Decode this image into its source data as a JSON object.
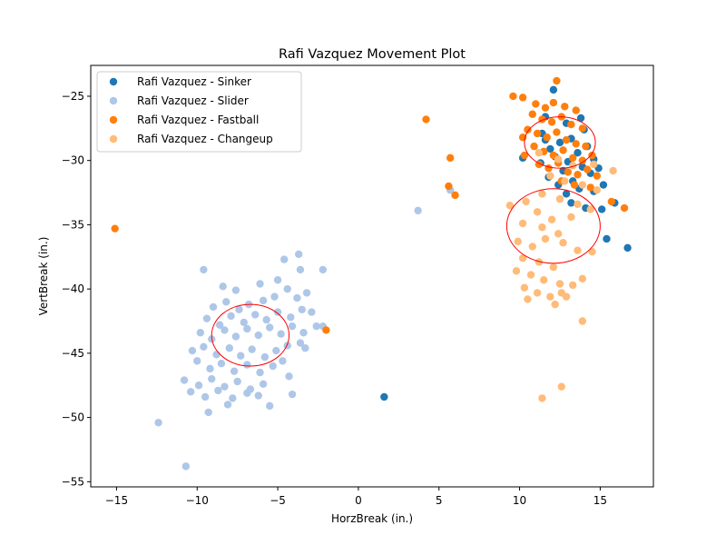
{
  "chart_data": {
    "type": "scatter",
    "title": "Rafi Vazquez Movement Plot",
    "xlabel": "HorzBreak (in.)",
    "ylabel": "VertBreak (in.)",
    "xlim": [
      -16.6,
      18.3
    ],
    "ylim": [
      -55.4,
      -22.6
    ],
    "xticks": [
      -15,
      -10,
      -5,
      0,
      5,
      10,
      15
    ],
    "yticks": [
      -55,
      -50,
      -45,
      -40,
      -35,
      -30,
      -25
    ],
    "xtick_labels": [
      "−15",
      "−10",
      "−5",
      "0",
      "5",
      "10",
      "15"
    ],
    "ytick_labels": [
      "−55",
      "−50",
      "−45",
      "−40",
      "−35",
      "−30",
      "−25"
    ],
    "grid": false,
    "legend_position": "top-left",
    "series": [
      {
        "name": "Rafi Vazquez - Sinker",
        "color": "#1f77b4",
        "points": [
          [
            12.1,
            -24.5
          ],
          [
            11.6,
            -26.6
          ],
          [
            13.8,
            -26.7
          ],
          [
            12.9,
            -27.1
          ],
          [
            14.0,
            -27.6
          ],
          [
            11.4,
            -27.9
          ],
          [
            13.2,
            -28.3
          ],
          [
            12.5,
            -28.6
          ],
          [
            14.2,
            -28.9
          ],
          [
            11.9,
            -29.1
          ],
          [
            13.6,
            -29.4
          ],
          [
            12.2,
            -29.7
          ],
          [
            14.6,
            -29.9
          ],
          [
            13.0,
            -30.1
          ],
          [
            11.3,
            -30.2
          ],
          [
            13.9,
            -30.5
          ],
          [
            12.7,
            -30.8
          ],
          [
            14.4,
            -31.0
          ],
          [
            11.8,
            -31.3
          ],
          [
            13.3,
            -31.6
          ],
          [
            14.9,
            -30.6
          ],
          [
            12.4,
            -31.9
          ],
          [
            13.7,
            -32.2
          ],
          [
            14.6,
            -32.4
          ],
          [
            12.9,
            -32.6
          ],
          [
            13.2,
            -33.3
          ],
          [
            14.1,
            -33.7
          ],
          [
            15.2,
            -31.9
          ],
          [
            15.1,
            -33.8
          ],
          [
            15.9,
            -33.3
          ],
          [
            10.2,
            -29.8
          ],
          [
            11.6,
            -28.4
          ],
          [
            15.4,
            -36.1
          ],
          [
            16.7,
            -36.8
          ],
          [
            1.6,
            -48.4
          ]
        ]
      },
      {
        "name": "Rafi Vazquez - Slider",
        "color": "#aec7e8",
        "points": [
          [
            -9.6,
            -38.5
          ],
          [
            -8.4,
            -39.8
          ],
          [
            -7.6,
            -40.1
          ],
          [
            -6.1,
            -39.6
          ],
          [
            -5.0,
            -39.3
          ],
          [
            -4.6,
            -37.7
          ],
          [
            -3.7,
            -37.3
          ],
          [
            -3.6,
            -38.5
          ],
          [
            -2.2,
            -38.5
          ],
          [
            -9.0,
            -41.4
          ],
          [
            -8.2,
            -41.0
          ],
          [
            -7.4,
            -41.6
          ],
          [
            -6.8,
            -41.2
          ],
          [
            -5.9,
            -40.9
          ],
          [
            -5.2,
            -40.6
          ],
          [
            -4.4,
            -40.0
          ],
          [
            -3.8,
            -40.7
          ],
          [
            -3.2,
            -40.3
          ],
          [
            -9.4,
            -42.3
          ],
          [
            -8.6,
            -42.8
          ],
          [
            -7.9,
            -42.1
          ],
          [
            -7.1,
            -42.6
          ],
          [
            -6.4,
            -42.0
          ],
          [
            -5.7,
            -42.4
          ],
          [
            -5.0,
            -41.8
          ],
          [
            -4.2,
            -42.2
          ],
          [
            -3.5,
            -41.6
          ],
          [
            -2.9,
            -41.8
          ],
          [
            -9.8,
            -43.4
          ],
          [
            -9.1,
            -43.9
          ],
          [
            -8.3,
            -43.2
          ],
          [
            -7.6,
            -43.7
          ],
          [
            -6.9,
            -43.1
          ],
          [
            -6.2,
            -43.6
          ],
          [
            -5.5,
            -43.0
          ],
          [
            -4.8,
            -43.5
          ],
          [
            -4.1,
            -42.9
          ],
          [
            -3.4,
            -43.4
          ],
          [
            -2.6,
            -42.9
          ],
          [
            -10.3,
            -44.8
          ],
          [
            -9.6,
            -44.5
          ],
          [
            -8.8,
            -45.1
          ],
          [
            -8.0,
            -44.6
          ],
          [
            -7.3,
            -45.2
          ],
          [
            -6.6,
            -44.7
          ],
          [
            -5.8,
            -45.3
          ],
          [
            -5.1,
            -44.8
          ],
          [
            -4.4,
            -44.4
          ],
          [
            -3.6,
            -44.2
          ],
          [
            -3.3,
            -44.6
          ],
          [
            -10.0,
            -45.6
          ],
          [
            -9.2,
            -46.2
          ],
          [
            -8.5,
            -45.8
          ],
          [
            -7.7,
            -46.4
          ],
          [
            -6.9,
            -45.9
          ],
          [
            -6.1,
            -46.5
          ],
          [
            -5.3,
            -46.0
          ],
          [
            -4.7,
            -45.6
          ],
          [
            -4.3,
            -46.8
          ],
          [
            -10.8,
            -47.1
          ],
          [
            -9.9,
            -47.5
          ],
          [
            -9.1,
            -47.0
          ],
          [
            -8.3,
            -47.6
          ],
          [
            -7.5,
            -47.2
          ],
          [
            -6.7,
            -47.8
          ],
          [
            -5.9,
            -47.4
          ],
          [
            -10.4,
            -48.0
          ],
          [
            -9.5,
            -48.4
          ],
          [
            -8.7,
            -47.9
          ],
          [
            -7.8,
            -48.5
          ],
          [
            -6.9,
            -48.1
          ],
          [
            -6.2,
            -48.3
          ],
          [
            -5.5,
            -49.1
          ],
          [
            -4.1,
            -48.2
          ],
          [
            -9.3,
            -49.6
          ],
          [
            -8.1,
            -49.0
          ],
          [
            -12.4,
            -50.4
          ],
          [
            -10.7,
            -53.8
          ],
          [
            -2.2,
            -42.9
          ],
          [
            3.7,
            -33.9
          ],
          [
            5.7,
            -32.3
          ]
        ]
      },
      {
        "name": "Rafi Vazquez - Fastball",
        "color": "#ff7f0e",
        "points": [
          [
            12.3,
            -23.8
          ],
          [
            9.6,
            -25.0
          ],
          [
            10.2,
            -25.1
          ],
          [
            11.0,
            -25.6
          ],
          [
            11.6,
            -25.9
          ],
          [
            12.1,
            -25.5
          ],
          [
            12.8,
            -25.8
          ],
          [
            13.5,
            -26.1
          ],
          [
            10.8,
            -26.4
          ],
          [
            11.4,
            -26.8
          ],
          [
            12.0,
            -27.0
          ],
          [
            12.6,
            -26.6
          ],
          [
            13.2,
            -27.2
          ],
          [
            13.9,
            -27.5
          ],
          [
            10.5,
            -27.6
          ],
          [
            11.1,
            -27.9
          ],
          [
            11.7,
            -28.2
          ],
          [
            12.3,
            -27.8
          ],
          [
            12.9,
            -28.4
          ],
          [
            13.5,
            -28.7
          ],
          [
            14.1,
            -28.9
          ],
          [
            10.9,
            -28.9
          ],
          [
            11.5,
            -29.3
          ],
          [
            12.1,
            -29.6
          ],
          [
            12.7,
            -29.2
          ],
          [
            13.3,
            -29.8
          ],
          [
            13.9,
            -30.0
          ],
          [
            14.5,
            -29.6
          ],
          [
            11.2,
            -30.3
          ],
          [
            11.8,
            -30.6
          ],
          [
            12.4,
            -30.2
          ],
          [
            13.0,
            -30.9
          ],
          [
            13.6,
            -31.1
          ],
          [
            14.2,
            -30.7
          ],
          [
            14.8,
            -31.2
          ],
          [
            12.6,
            -31.6
          ],
          [
            13.4,
            -31.9
          ],
          [
            14.4,
            -32.1
          ],
          [
            10.3,
            -29.6
          ],
          [
            10.2,
            -28.2
          ],
          [
            4.2,
            -26.8
          ],
          [
            5.7,
            -29.8
          ],
          [
            5.6,
            -32.0
          ],
          [
            6.0,
            -32.7
          ],
          [
            15.7,
            -33.2
          ],
          [
            16.5,
            -33.7
          ],
          [
            -15.1,
            -35.3
          ],
          [
            -2.0,
            -43.2
          ]
        ]
      },
      {
        "name": "Rafi Vazquez - Changeup",
        "color": "#ffbb78",
        "points": [
          [
            11.2,
            -29.4
          ],
          [
            12.4,
            -29.9
          ],
          [
            13.3,
            -30.4
          ],
          [
            14.6,
            -30.3
          ],
          [
            15.8,
            -30.8
          ],
          [
            11.9,
            -31.2
          ],
          [
            12.8,
            -31.6
          ],
          [
            13.9,
            -31.9
          ],
          [
            14.8,
            -32.3
          ],
          [
            11.4,
            -32.6
          ],
          [
            12.5,
            -33.0
          ],
          [
            13.6,
            -33.4
          ],
          [
            14.4,
            -33.8
          ],
          [
            9.4,
            -33.5
          ],
          [
            10.4,
            -33.2
          ],
          [
            11.1,
            -34.0
          ],
          [
            12.0,
            -34.6
          ],
          [
            13.2,
            -34.4
          ],
          [
            10.2,
            -34.9
          ],
          [
            11.4,
            -35.2
          ],
          [
            12.4,
            -35.7
          ],
          [
            9.9,
            -36.3
          ],
          [
            10.8,
            -36.7
          ],
          [
            11.6,
            -36.1
          ],
          [
            12.7,
            -36.4
          ],
          [
            13.6,
            -37.0
          ],
          [
            10.2,
            -37.6
          ],
          [
            11.2,
            -37.9
          ],
          [
            12.1,
            -38.3
          ],
          [
            14.5,
            -37.1
          ],
          [
            9.8,
            -38.6
          ],
          [
            10.7,
            -38.9
          ],
          [
            11.5,
            -39.3
          ],
          [
            12.5,
            -39.6
          ],
          [
            13.3,
            -39.7
          ],
          [
            10.3,
            -39.9
          ],
          [
            11.1,
            -40.3
          ],
          [
            11.9,
            -40.6
          ],
          [
            10.5,
            -40.8
          ],
          [
            12.6,
            -40.3
          ],
          [
            12.2,
            -41.2
          ],
          [
            12.9,
            -40.6
          ],
          [
            13.9,
            -39.2
          ],
          [
            13.9,
            -42.5
          ],
          [
            11.4,
            -48.5
          ],
          [
            12.6,
            -47.6
          ]
        ]
      }
    ],
    "ellipses": [
      {
        "cx": 12.5,
        "cy": -28.6,
        "rx": 2.2,
        "ry": 2.0
      },
      {
        "cx": 12.1,
        "cy": -35.1,
        "rx": 2.9,
        "ry": 2.9
      },
      {
        "cx": -6.7,
        "cy": -43.6,
        "rx": 2.4,
        "ry": 2.4
      }
    ],
    "ellipse_color": "#ff0000"
  }
}
